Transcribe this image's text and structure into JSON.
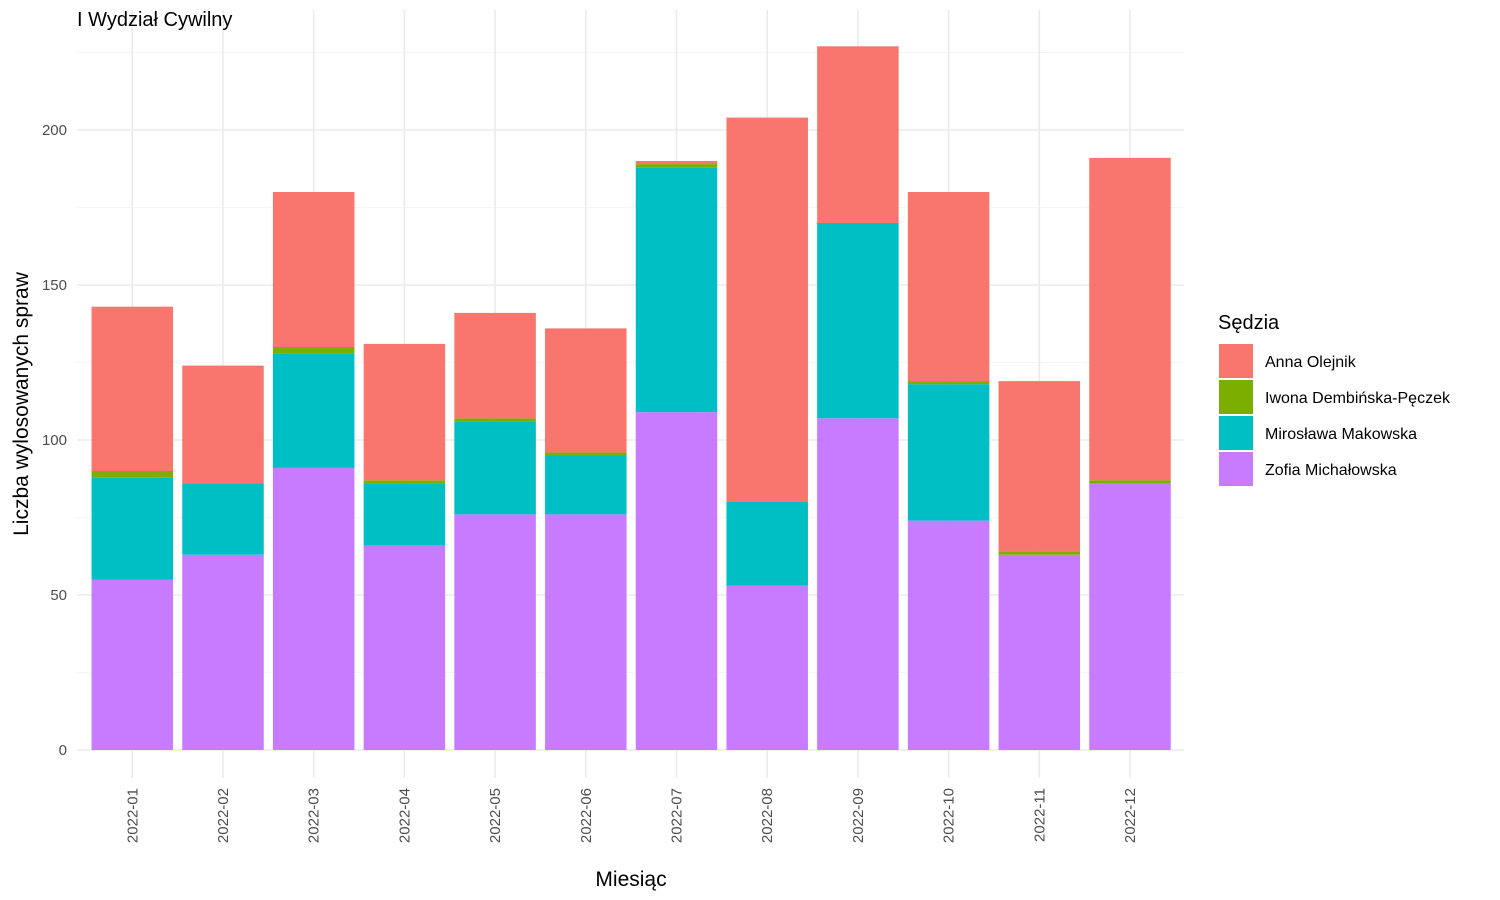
{
  "chart_data": {
    "type": "bar",
    "stacked": true,
    "title": "I Wydział Cywilny",
    "xlabel": "Miesiąc",
    "ylabel": "Liczba wylosowanych spraw",
    "ylim": [
      0,
      230
    ],
    "yticks": [
      0,
      50,
      100,
      150,
      200
    ],
    "grid": true,
    "legend_title": "Sędzia",
    "legend_position": "right",
    "categories": [
      "2022-01",
      "2022-02",
      "2022-03",
      "2022-04",
      "2022-05",
      "2022-06",
      "2022-07",
      "2022-08",
      "2022-09",
      "2022-10",
      "2022-11",
      "2022-12"
    ],
    "series": [
      {
        "name": "Zofia Michałowska",
        "color": "#C77CFF",
        "values": [
          55,
          63,
          91,
          66,
          76,
          76,
          109,
          53,
          107,
          74,
          63,
          86
        ]
      },
      {
        "name": "Mirosława Makowska",
        "color": "#00BFC4",
        "values": [
          33,
          23,
          37,
          20,
          30,
          19,
          79,
          27,
          63,
          44,
          0,
          0
        ]
      },
      {
        "name": "Iwona Dembińska-Pęczek",
        "color": "#7CAE00",
        "values": [
          2,
          0,
          2,
          1,
          1,
          1,
          1,
          0,
          0,
          1,
          1,
          1
        ]
      },
      {
        "name": "Anna Olejnik",
        "color": "#F8766D",
        "values": [
          53,
          38,
          50,
          44,
          34,
          40,
          1,
          124,
          57,
          61,
          55,
          104
        ]
      }
    ],
    "legend_order": [
      "Anna Olejnik",
      "Iwona Dembińska-Pęczek",
      "Mirosława Makowska",
      "Zofia Michałowska"
    ]
  }
}
